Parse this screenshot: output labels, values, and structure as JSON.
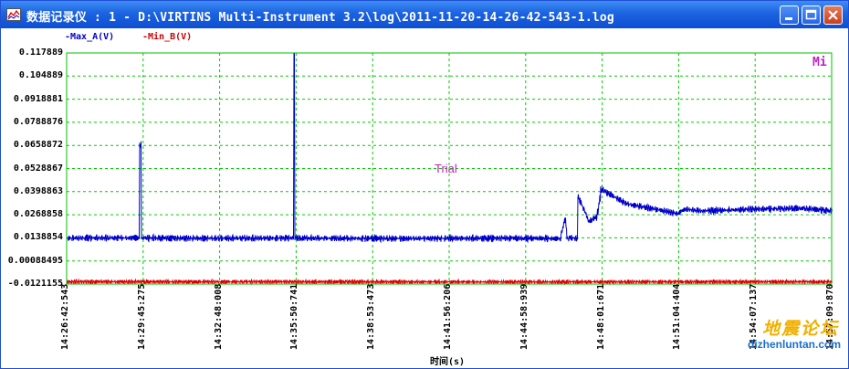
{
  "window": {
    "title": "数据记录仪 : 1 - D:\\VIRTINS Multi-Instrument 3.2\\log\\2011-11-20-14-26-42-543-1.log",
    "buttons": [
      "minimize",
      "maximize",
      "close"
    ]
  },
  "legend": [
    {
      "label": "-Max_A(V)",
      "color": "#0000cc"
    },
    {
      "label": "-Min_B(V)",
      "color": "#cc0000"
    }
  ],
  "plot": {
    "mi_label": "Mi",
    "trial_label": "Trial",
    "xlabel": "时间(s)"
  },
  "watermark": {
    "text": "地震论坛",
    "url": "dizhenluntan.com"
  },
  "colors": {
    "grid": "#00cc00",
    "frame": "#00c000",
    "series_a": "#0000cc",
    "series_b": "#dd0000",
    "title_bar": "#1b63e0"
  },
  "chart_data": {
    "type": "line",
    "title": "",
    "xlabel": "时间(s)",
    "ylabel": "",
    "y_tick_labels": [
      "0.117889",
      "0.104889",
      "0.0918881",
      "0.0788876",
      "0.0658872",
      "0.0528867",
      "0.0398863",
      "0.0268858",
      "0.0138854",
      "0.00088495",
      "-0.0121155"
    ],
    "ylim": [
      -0.0121155,
      0.117889
    ],
    "x_tick_labels": [
      "14:26:42:543",
      "14:29:45:275",
      "14:32:48:008",
      "14:35:50:741",
      "14:38:53:473",
      "14:41:56:206",
      "14:44:58:939",
      "14:48:01:671",
      "14:51:04:404",
      "14:54:07:137",
      "14:57:09:870"
    ],
    "grid": true,
    "series": [
      {
        "name": "Max_A(V)",
        "color": "#0000cc",
        "x": [
          "14:26:42:543",
          "14:28:00",
          "14:29:35",
          "14:29:38",
          "14:29:42",
          "14:33:00",
          "14:35:44",
          "14:35:46",
          "14:35:49",
          "14:40:00",
          "14:44:00",
          "14:46:20",
          "14:46:32",
          "14:46:40",
          "14:46:48",
          "14:47:00",
          "14:47:03",
          "14:47:30",
          "14:47:45",
          "14:47:50",
          "14:48:00",
          "14:49:00",
          "14:50:30",
          "14:51:00",
          "14:51:20",
          "14:52:00",
          "14:54:00",
          "14:56:00",
          "14:57:09:870"
        ],
        "values": [
          0.0137,
          0.0139,
          0.0138,
          0.0665,
          0.0138,
          0.0136,
          0.0138,
          0.1179,
          0.0137,
          0.0135,
          0.0137,
          0.0135,
          0.0238,
          0.0136,
          0.0138,
          0.0134,
          0.0375,
          0.0232,
          0.0252,
          0.0285,
          0.041,
          0.033,
          0.029,
          0.0275,
          0.03,
          0.029,
          0.03,
          0.0305,
          0.029
        ],
        "band": 0.002
      },
      {
        "name": "Min_B(V)",
        "color": "#dd0000",
        "x": [
          "14:26:42:543",
          "14:35:00",
          "14:45:00",
          "14:57:09:870"
        ],
        "values": [
          -0.0108,
          -0.0108,
          -0.0109,
          -0.0108
        ],
        "band": 0.0012
      }
    ]
  }
}
